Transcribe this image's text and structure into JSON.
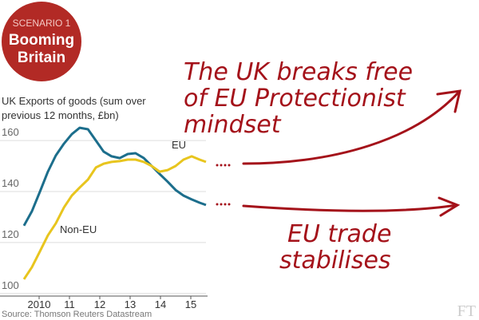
{
  "chart_data": {
    "type": "line",
    "badge": {
      "kicker": "SCENARIO 1",
      "title": [
        "Booming",
        "Britain"
      ]
    },
    "subtitle": [
      "UK Exports of goods (sum over",
      "previous 12 months, £bn)"
    ],
    "x": [
      2010.0,
      2010.26,
      2010.53,
      2010.79,
      2011.05,
      2011.32,
      2011.58,
      2011.84,
      2012.11,
      2012.37,
      2012.63,
      2012.89,
      2013.16,
      2013.42,
      2013.68,
      2013.95,
      2014.21,
      2014.47,
      2014.74,
      2015.0,
      2015.26,
      2015.53,
      2015.79,
      2016.0
    ],
    "series": [
      {
        "name": "EU",
        "color": "#1c6e8c",
        "values": [
          126.6,
          132.2,
          140.0,
          147.8,
          154.1,
          158.8,
          162.5,
          165.0,
          164.4,
          160.0,
          155.6,
          153.8,
          153.1,
          154.7,
          155.0,
          153.1,
          150.0,
          146.9,
          143.8,
          140.6,
          138.4,
          136.9,
          135.6,
          134.7
        ]
      },
      {
        "name": "Non-EU",
        "color": "#e8c51e",
        "values": [
          105.6,
          110.3,
          116.6,
          122.8,
          127.5,
          133.8,
          138.4,
          141.6,
          144.7,
          149.4,
          150.9,
          151.6,
          151.9,
          152.5,
          152.5,
          151.6,
          150.0,
          147.8,
          148.4,
          150.0,
          152.5,
          153.8,
          152.5,
          151.6
        ]
      }
    ],
    "xlim": [
      2010,
      2016
    ],
    "xticks": [
      {
        "value": 2010.5,
        "label": "2010"
      },
      {
        "value": 2011.5,
        "label": "11"
      },
      {
        "value": 2012.5,
        "label": "12"
      },
      {
        "value": 2013.5,
        "label": "13"
      },
      {
        "value": 2014.5,
        "label": "14"
      },
      {
        "value": 2015.5,
        "label": "15"
      }
    ],
    "ylim": [
      99,
      168
    ],
    "yticks": [
      100,
      120,
      140,
      160
    ],
    "grid": true,
    "source": "Source: Thomson Reuters Datastream",
    "logo": "FT",
    "annotations": [
      {
        "lines": [
          "The UK breaks free",
          "of EU Protectionist",
          "mindset"
        ]
      },
      {
        "lines": [
          "EU trade",
          "stabilises"
        ]
      }
    ]
  }
}
